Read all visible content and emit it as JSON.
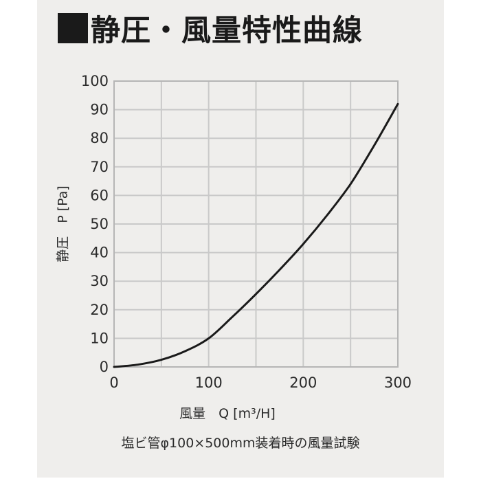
{
  "title": "静圧・風量特性曲線",
  "caption": "塩ビ管φ100×500mm装着時の風量試験",
  "colors": {
    "panel": "#efeeec",
    "plot_bg": "#efeeec",
    "grid": "#c9c9c9",
    "line": "#1a1a1a",
    "text": "#2b2b2b"
  },
  "chart_data": {
    "type": "line",
    "title": "静圧・風量特性曲線",
    "xlabel": "風量　Q [m³/H]",
    "ylabel": "静圧　P [Pa]",
    "xlim": [
      0,
      300
    ],
    "ylim": [
      0,
      100
    ],
    "x_ticks": [
      "0",
      "100",
      "200",
      "300"
    ],
    "y_ticks": [
      "0",
      "10",
      "20",
      "30",
      "40",
      "50",
      "60",
      "70",
      "80",
      "90",
      "100"
    ],
    "grid": true,
    "series": [
      {
        "x": [
          0,
          25,
          50,
          75,
          100,
          125,
          150,
          175,
          200,
          225,
          250,
          275,
          300
        ],
        "y": [
          0,
          0.8,
          2.5,
          5.5,
          10,
          17.5,
          25.5,
          34,
          43,
          53,
          64,
          77.5,
          92
        ]
      }
    ]
  }
}
